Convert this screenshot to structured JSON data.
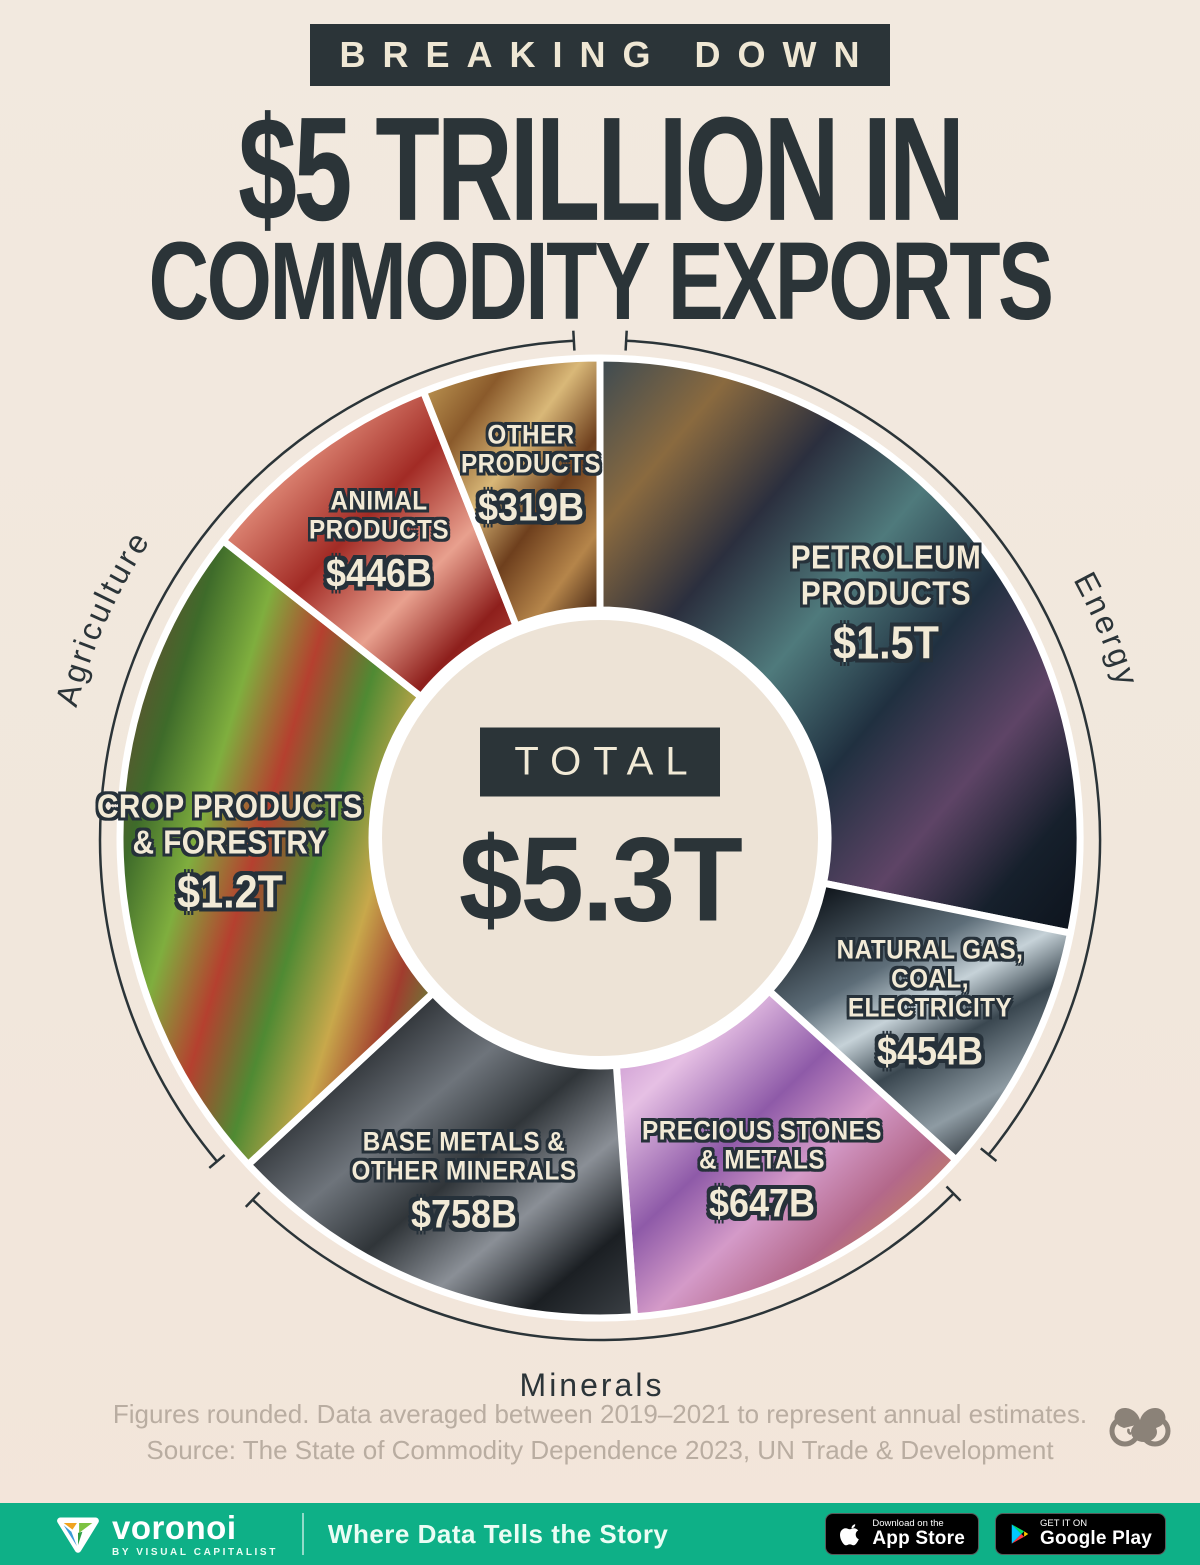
{
  "title": {
    "kicker": "BREAKING DOWN",
    "line1": "$5 TRILLION IN",
    "line2": "COMMODITY EXPORTS"
  },
  "chart_data": {
    "type": "pie",
    "title": "Breaking Down $5 Trillion in Commodity Exports",
    "total_label": "TOTAL",
    "total_value": "$5.3T",
    "unit": "USD billions, annual average 2019-2021",
    "segments": [
      {
        "id": "petroleum",
        "label": "PETROLEUM\nPRODUCTS",
        "value_label": "$1.5T",
        "value_billions": 1500,
        "group": "Energy"
      },
      {
        "id": "natgas",
        "label": "NATURAL GAS,\nCOAL, ELECTRICITY",
        "value_label": "$454B",
        "value_billions": 454,
        "group": "Energy"
      },
      {
        "id": "precious",
        "label": "PRECIOUS STONES\n& METALS",
        "value_label": "$647B",
        "value_billions": 647,
        "group": "Minerals"
      },
      {
        "id": "base",
        "label": "BASE METALS &\nOTHER MINERALS",
        "value_label": "$758B",
        "value_billions": 758,
        "group": "Minerals"
      },
      {
        "id": "crop",
        "label": "CROP PRODUCTS\n& FORESTRY",
        "value_label": "$1.2T",
        "value_billions": 1200,
        "group": "Agriculture"
      },
      {
        "id": "animal",
        "label": "ANIMAL\nPRODUCTS",
        "value_label": "$446B",
        "value_billions": 446,
        "group": "Agriculture"
      },
      {
        "id": "other",
        "label": "OTHER\nPRODUCTS",
        "value_label": "$319B",
        "value_billions": 319,
        "group": "Agriculture"
      }
    ],
    "groups": [
      "Agriculture",
      "Energy",
      "Minerals"
    ],
    "layout_hints": {
      "start_angle_deg": 0,
      "direction": "clockwise",
      "donut": true,
      "legend": "none"
    }
  },
  "footnote": {
    "line1": "Figures rounded. Data averaged between 2019–2021 to represent annual estimates.",
    "line2": "Source: The State of Commodity Dependence 2023, UN Trade & Development"
  },
  "footer": {
    "brand": "voronoi",
    "sub_brand": "BY VISUAL CAPITALIST",
    "tagline": "Where Data Tells the Story",
    "appstore_line1": "Download on the",
    "appstore_line2": "App Store",
    "gplay_line1": "GET IT ON",
    "gplay_line2": "Google Play"
  },
  "colors": {
    "background": "#f1e8de",
    "ink": "#2b3438",
    "cream_text": "#f2ead6",
    "bar_green": "#0eb087",
    "footnote_gray": "#b9ada1"
  }
}
